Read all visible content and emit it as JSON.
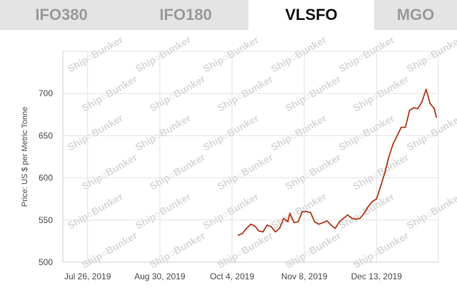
{
  "tabs": [
    {
      "label": "IFO380",
      "active": false
    },
    {
      "label": "IFO180",
      "active": false
    },
    {
      "label": "VLSFO",
      "active": true
    },
    {
      "label": "MGO",
      "active": false
    }
  ],
  "watermark": "Ship○Bunker",
  "colors": {
    "line": "#b23a1c",
    "grid": "#e2e2e2",
    "tab_inactive_bg": "#e4e4e4",
    "tab_inactive_text": "#9a9a9a"
  },
  "chart_data": {
    "type": "line",
    "title": "",
    "ylabel": "Price: US $ per Metric Tonne",
    "xlabel": "",
    "ylim": [
      500,
      750
    ],
    "yticks": [
      500,
      550,
      600,
      650,
      700
    ],
    "xlim": [
      "2019-07-14",
      "2020-01-12"
    ],
    "xticks": [
      {
        "date": "2019-07-26",
        "label": "Jul 26, 2019"
      },
      {
        "date": "2019-08-30",
        "label": "Aug 30, 2019"
      },
      {
        "date": "2019-10-04",
        "label": "Oct 4, 2019"
      },
      {
        "date": "2019-11-08",
        "label": "Nov 8, 2019"
      },
      {
        "date": "2019-12-13",
        "label": "Dec 13, 2019"
      }
    ],
    "grid": true,
    "series": [
      {
        "points": [
          [
            "2019-10-07",
            532
          ],
          [
            "2019-10-09",
            534
          ],
          [
            "2019-10-11",
            540
          ],
          [
            "2019-10-13",
            545
          ],
          [
            "2019-10-15",
            543
          ],
          [
            "2019-10-17",
            537
          ],
          [
            "2019-10-19",
            536
          ],
          [
            "2019-10-21",
            544
          ],
          [
            "2019-10-23",
            542
          ],
          [
            "2019-10-25",
            536
          ],
          [
            "2019-10-27",
            540
          ],
          [
            "2019-10-29",
            552
          ],
          [
            "2019-10-31",
            548
          ],
          [
            "2019-11-01",
            558
          ],
          [
            "2019-11-03",
            547
          ],
          [
            "2019-11-05",
            548
          ],
          [
            "2019-11-07",
            560
          ],
          [
            "2019-11-09",
            560
          ],
          [
            "2019-11-11",
            559
          ],
          [
            "2019-11-13",
            548
          ],
          [
            "2019-11-15",
            545
          ],
          [
            "2019-11-17",
            547
          ],
          [
            "2019-11-19",
            549
          ],
          [
            "2019-11-21",
            544
          ],
          [
            "2019-11-23",
            540
          ],
          [
            "2019-11-25",
            548
          ],
          [
            "2019-11-27",
            552
          ],
          [
            "2019-11-29",
            556
          ],
          [
            "2019-12-01",
            552
          ],
          [
            "2019-12-03",
            551
          ],
          [
            "2019-12-05",
            552
          ],
          [
            "2019-12-07",
            558
          ],
          [
            "2019-12-09",
            566
          ],
          [
            "2019-12-11",
            572
          ],
          [
            "2019-12-13",
            575
          ],
          [
            "2019-12-15",
            590
          ],
          [
            "2019-12-17",
            606
          ],
          [
            "2019-12-19",
            625
          ],
          [
            "2019-12-21",
            640
          ],
          [
            "2019-12-23",
            650
          ],
          [
            "2019-12-25",
            660
          ],
          [
            "2019-12-27",
            660
          ],
          [
            "2019-12-29",
            680
          ],
          [
            "2019-12-31",
            683
          ],
          [
            "2020-01-02",
            682
          ],
          [
            "2020-01-04",
            690
          ],
          [
            "2020-01-06",
            705
          ],
          [
            "2020-01-08",
            688
          ],
          [
            "2020-01-10",
            682
          ],
          [
            "2020-01-11",
            672
          ]
        ]
      }
    ]
  }
}
